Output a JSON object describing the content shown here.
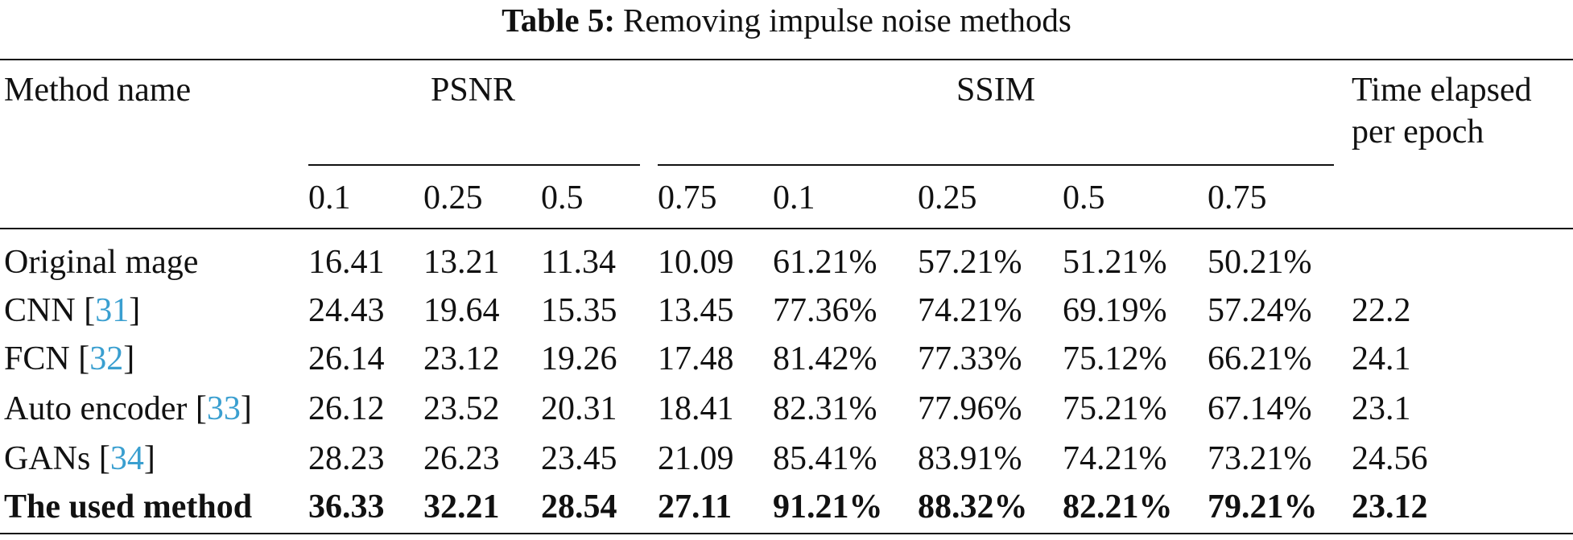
{
  "caption": {
    "label": "Table 5:",
    "text": "Removing impulse noise methods"
  },
  "header": {
    "method_label": "Method name",
    "group_psnr": "PSNR",
    "group_ssim": "SSIM",
    "time_line1": "Time elapsed",
    "time_line2": "per epoch",
    "subcolumns": [
      "0.1",
      "0.25",
      "0.5",
      "0.75",
      "0.1",
      "0.25",
      "0.5",
      "0.75"
    ]
  },
  "rows": [
    {
      "name": "Original mage",
      "ref": "",
      "values": [
        "16.41",
        "13.21",
        "11.34",
        "10.09",
        "61.21%",
        "57.21%",
        "51.21%",
        "50.21%"
      ],
      "time": "",
      "bold": false
    },
    {
      "name": "CNN",
      "ref": "31",
      "values": [
        "24.43",
        "19.64",
        "15.35",
        "13.45",
        "77.36%",
        "74.21%",
        "69.19%",
        "57.24%"
      ],
      "time": "22.2",
      "bold": false
    },
    {
      "name": "FCN",
      "ref": "32",
      "values": [
        "26.14",
        "23.12",
        "19.26",
        "17.48",
        "81.42%",
        "77.33%",
        "75.12%",
        "66.21%"
      ],
      "time": "24.1",
      "bold": false
    },
    {
      "name": "Auto encoder",
      "ref": "33",
      "values": [
        "26.12",
        "23.52",
        "20.31",
        "18.41",
        "82.31%",
        "77.96%",
        "75.21%",
        "67.14%"
      ],
      "time": "23.1",
      "bold": false
    },
    {
      "name": "GANs",
      "ref": "34",
      "values": [
        "28.23",
        "26.23",
        "23.45",
        "21.09",
        "85.41%",
        "83.91%",
        "74.21%",
        "73.21%"
      ],
      "time": "24.56",
      "bold": false
    },
    {
      "name": "The used method",
      "ref": "",
      "values": [
        "36.33",
        "32.21",
        "28.54",
        "27.11",
        "91.21%",
        "88.32%",
        "82.21%",
        "79.21%"
      ],
      "time": "23.12",
      "bold": true
    }
  ]
}
